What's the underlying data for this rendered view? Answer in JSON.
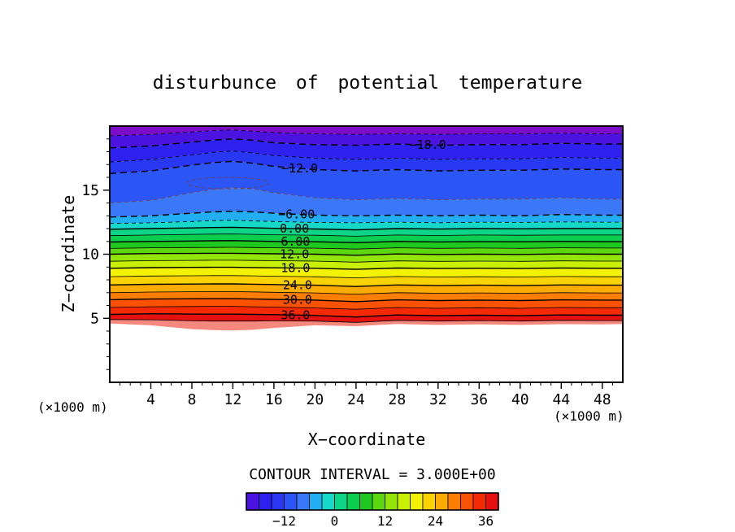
{
  "chart_data": {
    "type": "heatmap",
    "subtype": "filled-contour",
    "title": "disturbunce of potential temperature",
    "xlabel": "X−coordinate",
    "ylabel": "Z−coordinate",
    "axis_units_label": "(×1000 m)",
    "contour_interval_label": "CONTOUR INTERVAL = 3.000E+00",
    "contour_interval": 3.0,
    "xlim": [
      0,
      50
    ],
    "ylim": [
      0,
      20
    ],
    "x_ticks": [
      4,
      8,
      12,
      16,
      20,
      24,
      28,
      32,
      36,
      40,
      44,
      48
    ],
    "y_ticks": [
      5,
      10,
      15
    ],
    "x_samples": [
      0,
      4,
      8,
      10,
      12,
      14,
      16,
      20,
      24,
      28,
      32,
      36,
      40,
      44,
      48,
      50
    ],
    "levels": [
      {
        "value": -21,
        "z": [
          19.25,
          19.35,
          19.55,
          19.65,
          19.7,
          19.6,
          19.5,
          19.4,
          19.35,
          19.4,
          19.35,
          19.4,
          19.4,
          19.45,
          19.4,
          19.4
        ]
      },
      {
        "value": -18,
        "z": [
          18.3,
          18.45,
          18.75,
          18.9,
          19.0,
          18.9,
          18.7,
          18.55,
          18.5,
          18.6,
          18.5,
          18.55,
          18.55,
          18.65,
          18.6,
          18.6
        ]
      },
      {
        "value": -15,
        "z": [
          17.2,
          17.4,
          17.75,
          17.95,
          18.05,
          17.9,
          17.7,
          17.5,
          17.4,
          17.5,
          17.4,
          17.45,
          17.45,
          17.55,
          17.5,
          17.5
        ]
      },
      {
        "value": -12,
        "z": [
          16.3,
          16.5,
          16.95,
          17.15,
          17.25,
          17.1,
          16.85,
          16.6,
          16.5,
          16.6,
          16.5,
          16.55,
          16.55,
          16.65,
          16.6,
          16.6
        ]
      },
      {
        "value": -9,
        "z": [
          14.0,
          14.2,
          14.8,
          15.05,
          15.2,
          15.1,
          14.8,
          14.4,
          14.25,
          14.35,
          14.25,
          14.3,
          14.3,
          14.4,
          14.3,
          14.3
        ]
      },
      {
        "value": -6,
        "z": [
          12.9,
          13.0,
          13.2,
          13.3,
          13.35,
          13.3,
          13.2,
          13.05,
          13.0,
          13.05,
          13.0,
          13.05,
          13.0,
          13.1,
          13.05,
          13.05
        ]
      },
      {
        "value": -3,
        "z": [
          12.4,
          12.45,
          12.55,
          12.62,
          12.65,
          12.6,
          12.55,
          12.48,
          12.45,
          12.5,
          12.45,
          12.5,
          12.48,
          12.52,
          12.5,
          12.5
        ]
      },
      {
        "value": 0,
        "z": [
          11.95,
          12.0,
          12.05,
          12.08,
          12.1,
          12.06,
          12.02,
          11.97,
          11.9,
          12.0,
          11.96,
          12.0,
          11.98,
          12.0,
          12.0,
          12.0
        ]
      },
      {
        "value": 3,
        "z": [
          11.45,
          11.5,
          11.55,
          11.57,
          11.58,
          11.55,
          11.52,
          11.48,
          11.4,
          11.5,
          11.46,
          11.5,
          11.48,
          11.5,
          11.5,
          11.5
        ]
      },
      {
        "value": 6,
        "z": [
          10.95,
          11.0,
          11.03,
          11.05,
          11.06,
          11.03,
          11.0,
          10.97,
          10.9,
          11.0,
          10.96,
          10.98,
          10.97,
          11.0,
          10.98,
          10.98
        ]
      },
      {
        "value": 9,
        "z": [
          10.45,
          10.5,
          10.52,
          10.53,
          10.54,
          10.52,
          10.5,
          10.47,
          10.4,
          10.5,
          10.46,
          10.48,
          10.46,
          10.5,
          10.48,
          10.48
        ]
      },
      {
        "value": 12,
        "z": [
          10.0,
          10.05,
          10.06,
          10.07,
          10.07,
          10.05,
          10.03,
          10.0,
          9.92,
          10.02,
          9.98,
          10.0,
          9.98,
          10.02,
          10.0,
          10.0
        ]
      },
      {
        "value": 15,
        "z": [
          9.45,
          9.5,
          9.52,
          9.53,
          9.53,
          9.51,
          9.49,
          9.46,
          9.38,
          9.48,
          9.44,
          9.46,
          9.44,
          9.48,
          9.46,
          9.46
        ]
      },
      {
        "value": 18,
        "z": [
          8.9,
          8.95,
          8.97,
          8.98,
          8.98,
          8.96,
          8.94,
          8.9,
          8.82,
          8.92,
          8.88,
          8.9,
          8.88,
          8.92,
          8.9,
          8.9
        ]
      },
      {
        "value": 21,
        "z": [
          8.25,
          8.3,
          8.32,
          8.33,
          8.33,
          8.31,
          8.28,
          8.24,
          8.15,
          8.26,
          8.22,
          8.24,
          8.22,
          8.26,
          8.24,
          8.24
        ]
      },
      {
        "value": 24,
        "z": [
          7.6,
          7.65,
          7.67,
          7.68,
          7.68,
          7.66,
          7.63,
          7.58,
          7.48,
          7.6,
          7.55,
          7.58,
          7.55,
          7.6,
          7.58,
          7.58
        ]
      },
      {
        "value": 27,
        "z": [
          7.0,
          7.05,
          7.07,
          7.08,
          7.08,
          7.06,
          7.03,
          6.98,
          6.88,
          7.0,
          6.95,
          6.98,
          6.95,
          7.0,
          6.98,
          6.98
        ]
      },
      {
        "value": 30,
        "z": [
          6.45,
          6.5,
          6.52,
          6.53,
          6.53,
          6.5,
          6.47,
          6.42,
          6.3,
          6.44,
          6.38,
          6.42,
          6.38,
          6.44,
          6.42,
          6.42
        ]
      },
      {
        "value": 33,
        "z": [
          5.85,
          5.9,
          5.92,
          5.93,
          5.93,
          5.9,
          5.87,
          5.8,
          5.7,
          5.84,
          5.78,
          5.82,
          5.78,
          5.84,
          5.82,
          5.82
        ]
      },
      {
        "value": 36,
        "z": [
          5.3,
          5.35,
          5.33,
          5.32,
          5.32,
          5.3,
          5.28,
          5.22,
          5.1,
          5.26,
          5.2,
          5.24,
          5.2,
          5.26,
          5.24,
          5.24
        ]
      },
      {
        "value": 39,
        "z": [
          4.9,
          4.88,
          4.8,
          4.78,
          4.78,
          4.78,
          4.8,
          4.78,
          4.68,
          4.84,
          4.78,
          4.82,
          4.78,
          4.84,
          4.82,
          4.82
        ]
      }
    ],
    "surface_z": [
      4.6,
      4.45,
      4.15,
      4.08,
      4.05,
      4.1,
      4.25,
      4.45,
      4.38,
      4.55,
      4.48,
      4.52,
      4.48,
      4.54,
      4.52,
      4.55
    ],
    "labeled_values": [
      -18,
      -12,
      -6,
      0,
      6,
      12,
      18,
      24,
      30,
      36
    ],
    "contour_labels": [
      {
        "text": "−18.0",
        "value": -18,
        "x": 31
      },
      {
        "text": "−12.0",
        "value": -12,
        "x": 18.5
      },
      {
        "text": "−6.00",
        "value": -6,
        "x": 18.2
      },
      {
        "text": "0.00",
        "value": 0,
        "x": 18.0
      },
      {
        "text": "6.00",
        "value": 6,
        "x": 18.1
      },
      {
        "text": "12.0",
        "value": 12,
        "x": 18.0
      },
      {
        "text": "18.0",
        "value": 18,
        "x": 18.1
      },
      {
        "text": "24.0",
        "value": 24,
        "x": 18.3
      },
      {
        "text": "30.0",
        "value": 30,
        "x": 18.3
      },
      {
        "text": "36.0",
        "value": 36,
        "x": 18.1
      }
    ],
    "closed_contour": {
      "cx": 11.5,
      "cz": 15.55,
      "rx": 4.0,
      "rz": 0.45
    },
    "band_colors": [
      "#7d0cc8",
      "#4b12e0",
      "#2e20ee",
      "#2737f2",
      "#2b55f5",
      "#3b78f8",
      "#21aef2",
      "#16d8c8",
      "#0ed488",
      "#0cce4e",
      "#1ec81e",
      "#5cd60e",
      "#93e408",
      "#c9ef04",
      "#f2f202",
      "#fbd302",
      "#fbab02",
      "#fb7d02",
      "#fb5202",
      "#f62a02",
      "#e51010",
      "#f6887e"
    ],
    "colorbar": {
      "vmin": -21,
      "vmax": 39,
      "ticks": [
        -12,
        0,
        12,
        24,
        36
      ],
      "tick_labels": [
        "−12",
        "0",
        "12",
        "24",
        "36"
      ]
    }
  }
}
